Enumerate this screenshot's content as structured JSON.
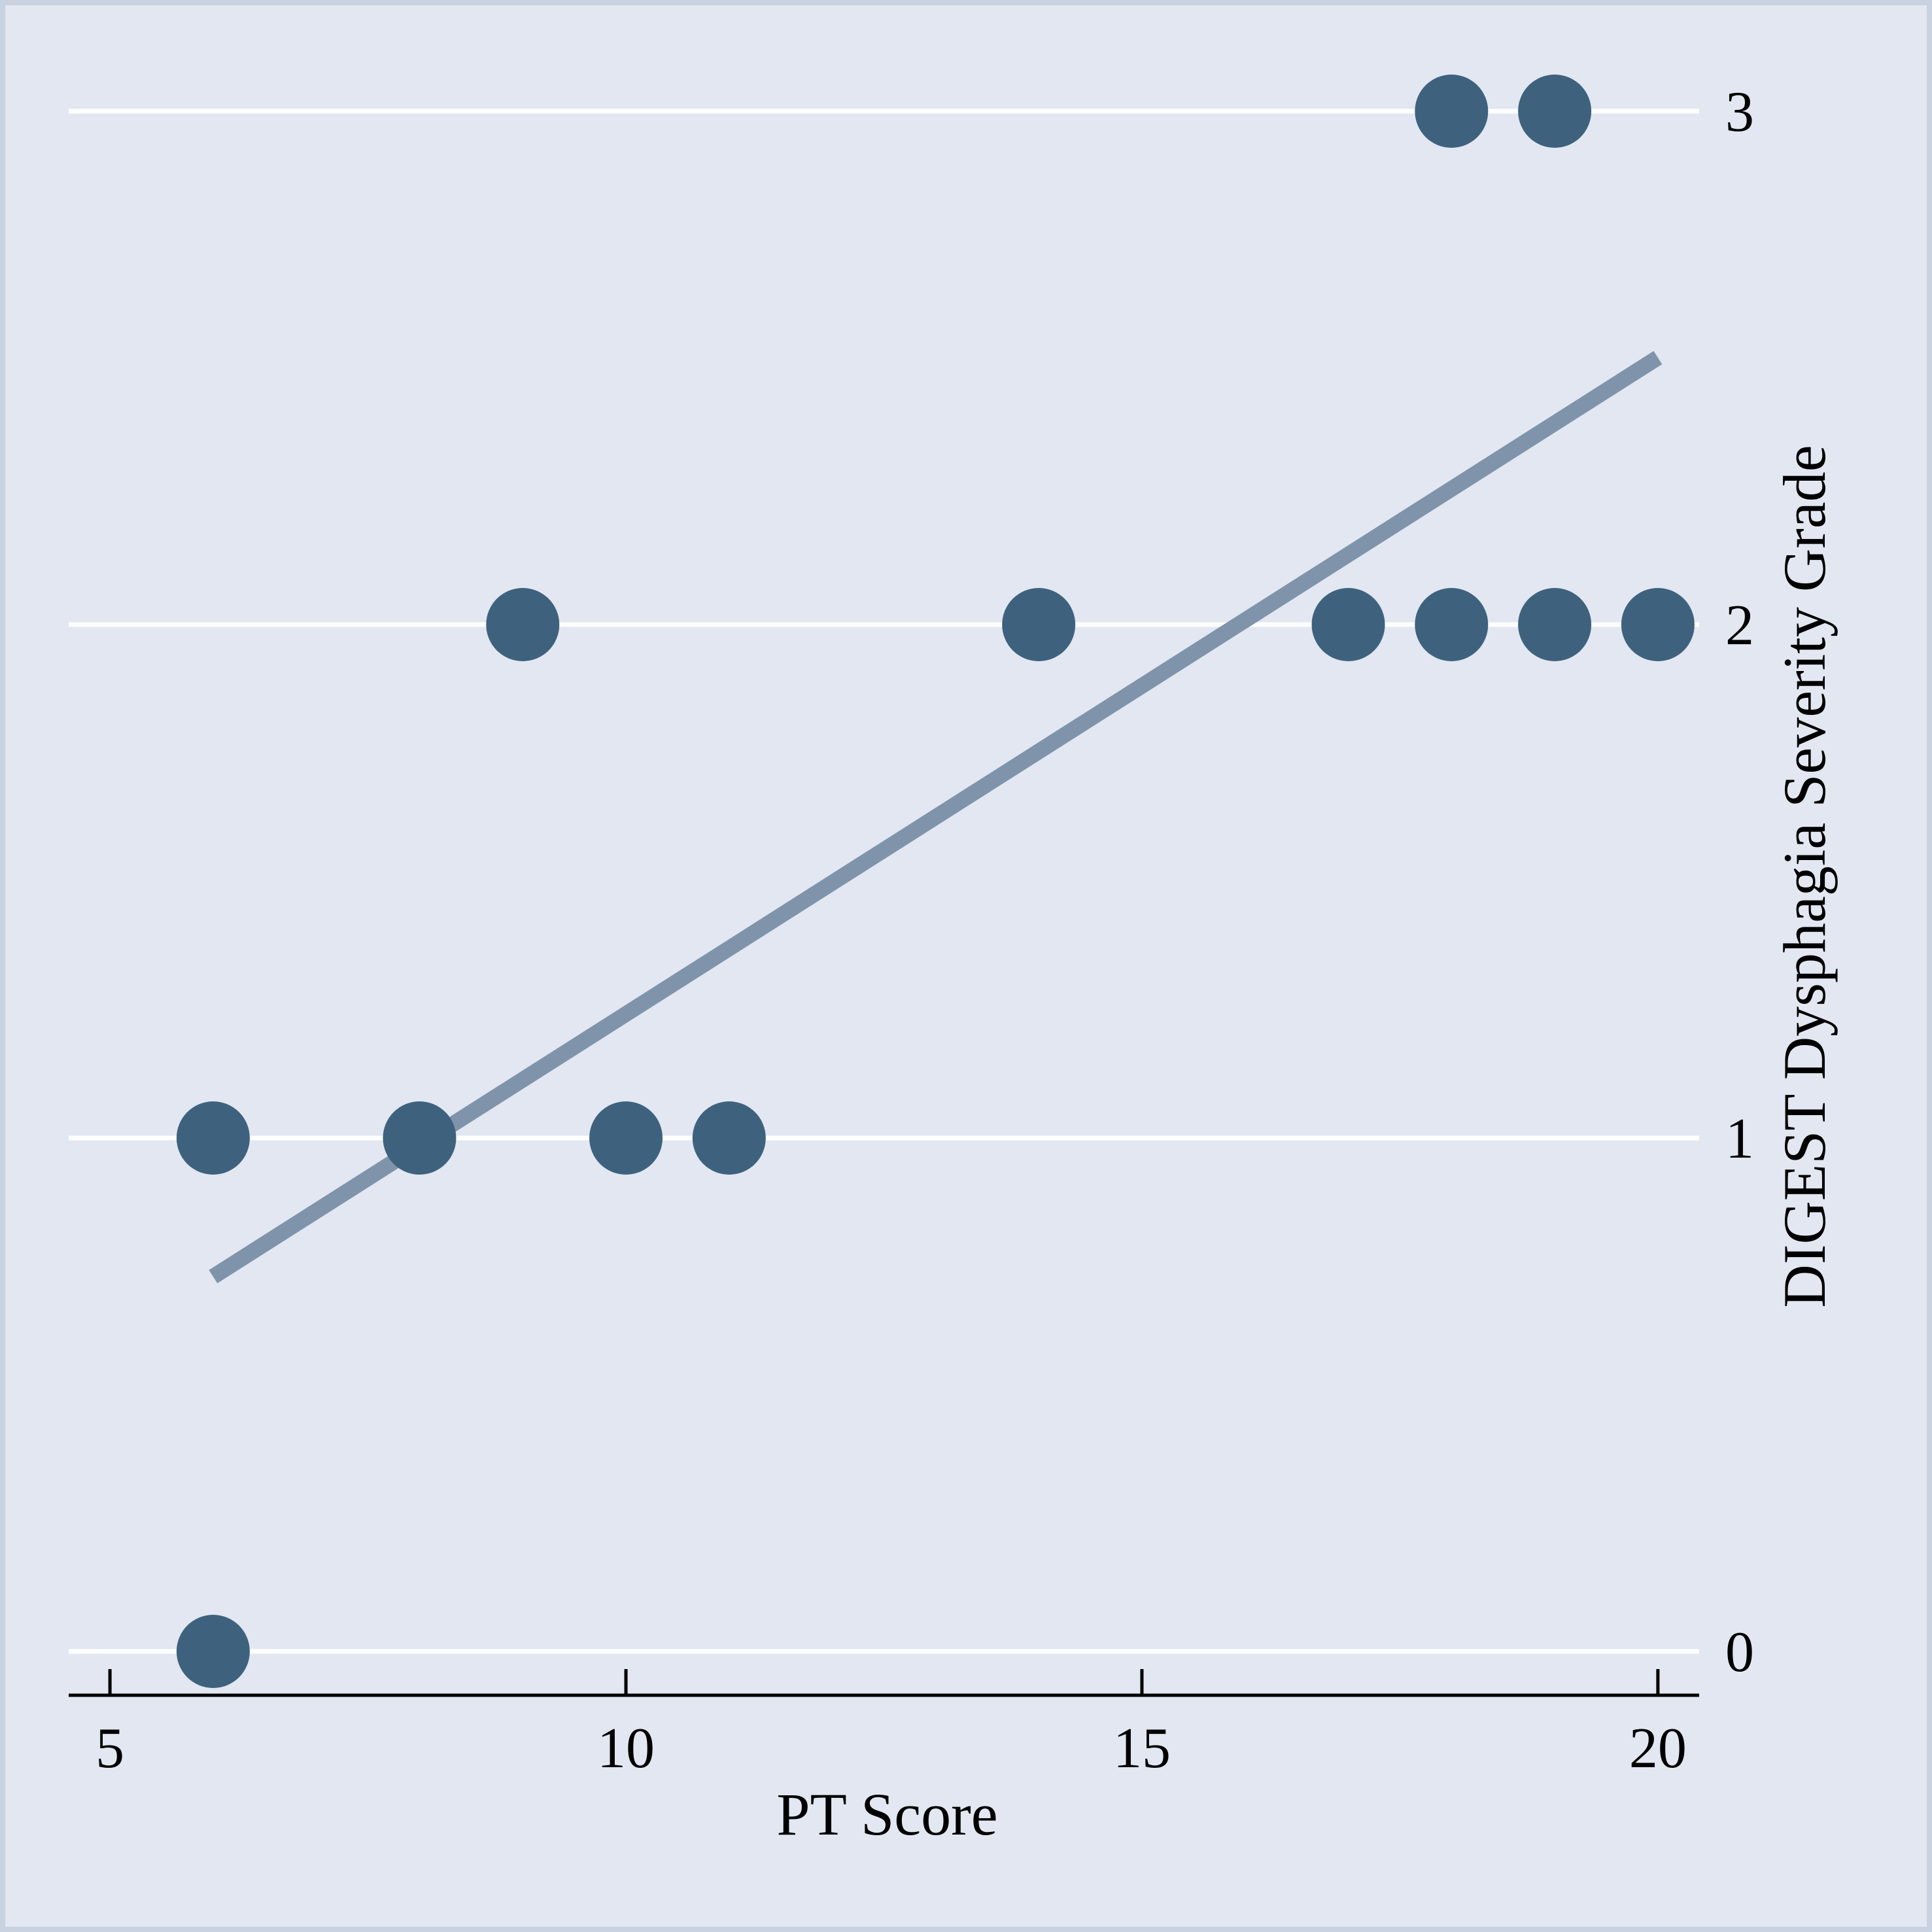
{
  "chart_data": {
    "type": "scatter",
    "title": "",
    "xlabel": "PT Score",
    "ylabel": "DIGEST Dysphagia Severity Grade",
    "xlim": [
      4.6,
      20.4
    ],
    "ylim": [
      0,
      3
    ],
    "x_ticks": [
      5,
      10,
      15,
      20
    ],
    "y_ticks": [
      0,
      1,
      2,
      3
    ],
    "y_axis_position": "right",
    "grid": "horizontal",
    "series": [
      {
        "points": [
          {
            "x": 6,
            "y": 0
          },
          {
            "x": 6,
            "y": 1
          },
          {
            "x": 8,
            "y": 1
          },
          {
            "x": 10,
            "y": 1
          },
          {
            "x": 11,
            "y": 1
          },
          {
            "x": 9,
            "y": 2
          },
          {
            "x": 14,
            "y": 2
          },
          {
            "x": 17,
            "y": 2
          },
          {
            "x": 18,
            "y": 2
          },
          {
            "x": 19,
            "y": 2
          },
          {
            "x": 20,
            "y": 2
          },
          {
            "x": 18,
            "y": 3
          },
          {
            "x": 19,
            "y": 3
          }
        ]
      }
    ],
    "fit_line": {
      "x": [
        6,
        20
      ],
      "y": [
        0.73,
        2.52
      ]
    },
    "colors": {
      "points": "#3e627e",
      "fit_line": "#7f94aa",
      "background": "#e2e7f1",
      "grid": "#ffffff"
    }
  }
}
